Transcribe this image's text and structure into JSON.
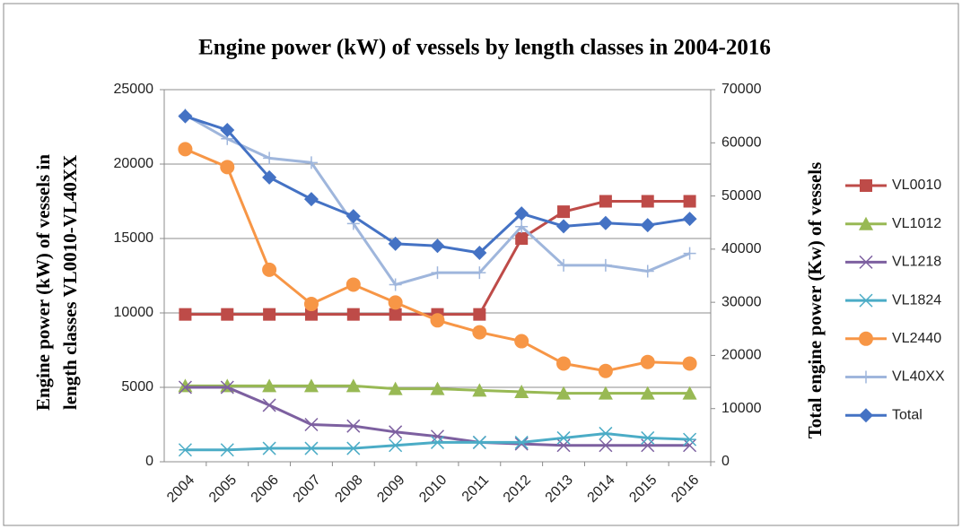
{
  "chart_data": {
    "type": "line",
    "title": "Engine power (kW) of vessels by length classes in 2004-2016",
    "y_label": [
      "Engine power (kW) of vessels in",
      "length classes VL0010-VL40XX"
    ],
    "y2_label": "Total engine power (Kw) of vessels",
    "categories": [
      "2004",
      "2005",
      "2006",
      "2007",
      "2008",
      "2009",
      "2010",
      "2011",
      "2012",
      "2013",
      "2014",
      "2015",
      "2016"
    ],
    "ylim": [
      0,
      25000
    ],
    "yticks": [
      0,
      5000,
      10000,
      15000,
      20000,
      25000
    ],
    "y2lim": [
      0,
      70000
    ],
    "y2ticks": [
      0,
      10000,
      20000,
      30000,
      40000,
      50000,
      60000,
      70000
    ],
    "grid": true,
    "legend": "right",
    "series": [
      {
        "name": "VL0010",
        "color": "#be4b48",
        "marker": "square",
        "values": [
          9900,
          9900,
          9900,
          9900,
          9900,
          9900,
          9900,
          9900,
          15000,
          16800,
          17500,
          17500,
          17500
        ]
      },
      {
        "name": "VL1012",
        "color": "#98b954",
        "marker": "triangle",
        "values": [
          5100,
          5100,
          5100,
          5100,
          5100,
          4900,
          4900,
          4800,
          4700,
          4600,
          4600,
          4600,
          4600
        ]
      },
      {
        "name": "VL1218",
        "color": "#7d60a0",
        "marker": "x",
        "values": [
          5000,
          5000,
          3800,
          2500,
          2400,
          2000,
          1700,
          1300,
          1200,
          1100,
          1100,
          1100,
          1100
        ]
      },
      {
        "name": "VL1824",
        "color": "#4bacc6",
        "marker": "asterisk",
        "values": [
          800,
          800,
          900,
          900,
          900,
          1100,
          1300,
          1300,
          1300,
          1600,
          1900,
          1600,
          1500
        ]
      },
      {
        "name": "VL2440",
        "color": "#f79646",
        "marker": "circle",
        "values": [
          21000,
          19800,
          12900,
          10600,
          11900,
          10700,
          9500,
          8700,
          8100,
          6600,
          6100,
          6700,
          6600
        ]
      },
      {
        "name": "VL40XX",
        "color": "#9fb6dc",
        "marker": "plus",
        "values": [
          23300,
          21700,
          20400,
          20100,
          16000,
          11900,
          12700,
          12700,
          15800,
          13200,
          13200,
          12800,
          14000
        ]
      },
      {
        "name": "Total",
        "color": "#4472c4",
        "marker": "diamond",
        "axis": "y2",
        "values": [
          65000,
          62400,
          53500,
          49400,
          46200,
          41000,
          40600,
          39300,
          46700,
          44300,
          44900,
          44500,
          45700
        ]
      }
    ]
  }
}
